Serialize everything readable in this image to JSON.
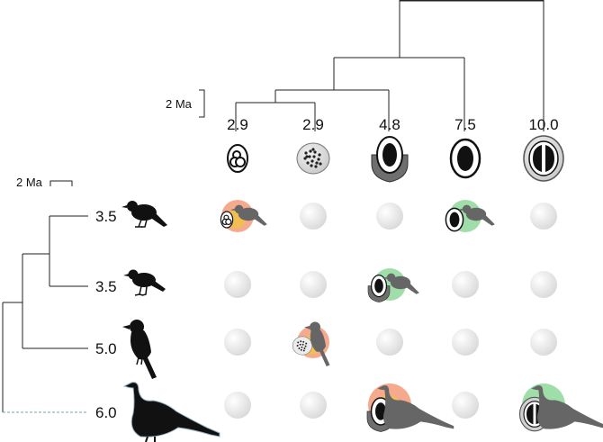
{
  "scale_bars": {
    "top_label": "2 Ma",
    "left_label": "2 Ma"
  },
  "fruits": [
    {
      "label": "2.9",
      "type": "multi-seed"
    },
    {
      "label": "2.9",
      "type": "many-seeds"
    },
    {
      "label": "4.8",
      "type": "cupped-seed"
    },
    {
      "label": "7.5",
      "type": "single-seed"
    },
    {
      "label": "10.0",
      "type": "split-seed"
    }
  ],
  "birds": [
    {
      "label": "3.5",
      "type": "small-thrush"
    },
    {
      "label": "3.5",
      "type": "small-thrush"
    },
    {
      "label": "5.0",
      "type": "medium-perching"
    },
    {
      "label": "6.0",
      "type": "large-guan"
    }
  ],
  "matrix": [
    {
      "row": 0,
      "col": 0,
      "halo": "#f39b7a",
      "halo2": "#f3c04a"
    },
    {
      "row": 0,
      "col": 3,
      "halo": "#8ed79a"
    },
    {
      "row": 1,
      "col": 2,
      "halo": "#8ed79a"
    },
    {
      "row": 2,
      "col": 1,
      "halo": "#f39b7a",
      "halo2": "#f3c04a"
    },
    {
      "row": 3,
      "col": 2,
      "halo": "#f39b7a",
      "halo2": "#f3c04a"
    },
    {
      "row": 3,
      "col": 4,
      "halo": "#8ed79a"
    }
  ],
  "colors": {
    "tree": "#222222",
    "dashed_root": "#7aa3ad",
    "empty_cell": "#dcdcdc",
    "seed_gray": "#9a9a9a"
  }
}
